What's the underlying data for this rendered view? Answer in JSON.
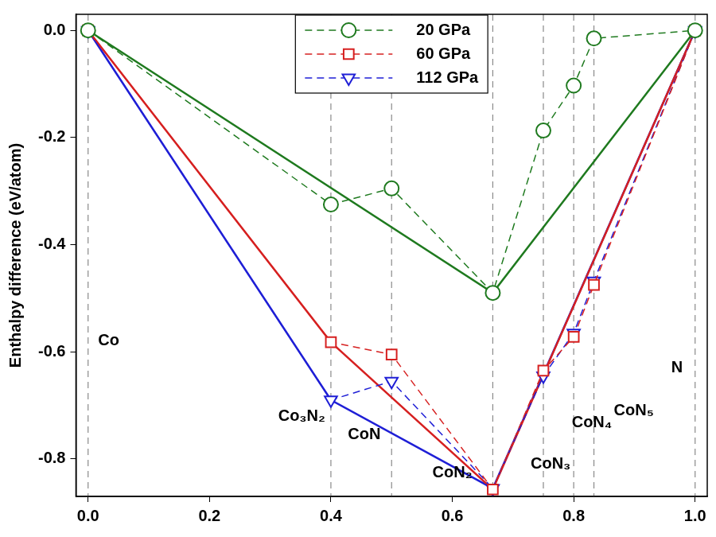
{
  "chart_data": {
    "type": "line",
    "y_label": "Enthalpy difference (eV/atom)",
    "xlim": [
      -0.02,
      1.02
    ],
    "ylim": [
      -0.87,
      0.03
    ],
    "xticks": [
      {
        "value": 0,
        "label": "0.0"
      },
      0.2,
      0.4,
      0.6,
      0.8,
      {
        "value": 1,
        "label": "1.0"
      }
    ],
    "yticks": [
      -0.8,
      -0.6,
      -0.4,
      -0.2,
      {
        "value": 0,
        "label": "0.0"
      }
    ],
    "grid": false,
    "legend": "upper center",
    "reference_lines": {
      "x": [
        0,
        0.4,
        0.5,
        0.6667,
        0.75,
        0.8,
        0.8333,
        1
      ]
    },
    "annotations": [
      {
        "text": "Co",
        "x": 0.034,
        "y": -0.58
      },
      {
        "text": "Co₃N₂",
        "x": 0.352,
        "y": -0.72
      },
      {
        "text": "CoN",
        "x": 0.455,
        "y": -0.755
      },
      {
        "text": "CoN₂",
        "x": 0.6,
        "y": -0.826
      },
      {
        "text": "CoN₃",
        "x": 0.762,
        "y": -0.81
      },
      {
        "text": "CoN₄",
        "x": 0.83,
        "y": -0.733
      },
      {
        "text": "CoN₅",
        "x": 0.899,
        "y": -0.71
      },
      {
        "text": "N",
        "x": 0.97,
        "y": -0.63
      }
    ],
    "series": [
      {
        "name": "20 GPa",
        "color": "#1f7a1f",
        "marker": "circle",
        "line_style": "dashed",
        "x": [
          0,
          0.4,
          0.5,
          0.6667,
          0.75,
          0.8,
          0.8333,
          1
        ],
        "values": [
          0,
          -0.325,
          -0.295,
          -0.49,
          -0.187,
          -0.103,
          -0.015,
          0
        ]
      },
      {
        "name": "60 GPa",
        "color": "#d62020",
        "marker": "square",
        "line_style": "dashed",
        "x": [
          0,
          0.4,
          0.5,
          0.6667,
          0.75,
          0.8,
          0.8333,
          1
        ],
        "values": [
          0,
          -0.582,
          -0.605,
          -0.857,
          -0.635,
          -0.572,
          -0.475,
          0
        ]
      },
      {
        "name": "112 GPa",
        "color": "#1f1fd6",
        "marker": "triangle-down",
        "line_style": "dashed",
        "x": [
          0,
          0.4,
          0.5,
          0.6667,
          0.75,
          0.8,
          0.8333,
          1
        ],
        "values": [
          0,
          -0.69,
          -0.655,
          -0.855,
          -0.645,
          -0.565,
          -0.468,
          0
        ]
      },
      {
        "color": "#1f7a1f",
        "marker": "none",
        "line_style": "solid",
        "x": [
          0,
          0.6667,
          1
        ],
        "values": [
          0,
          -0.49,
          0
        ]
      },
      {
        "color": "#d62020",
        "marker": "none",
        "line_style": "solid",
        "x": [
          0,
          0.4,
          0.6667,
          1
        ],
        "values": [
          0,
          -0.582,
          -0.857,
          0
        ]
      },
      {
        "color": "#1f1fd6",
        "marker": "none",
        "line_style": "solid",
        "x": [
          0,
          0.4,
          0.6667,
          1
        ],
        "values": [
          0,
          -0.69,
          -0.855,
          0
        ]
      }
    ]
  }
}
